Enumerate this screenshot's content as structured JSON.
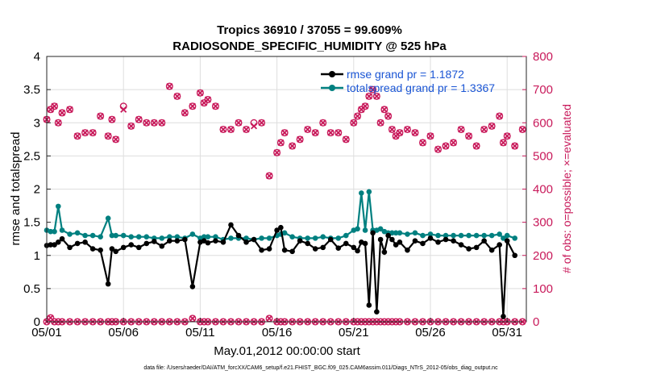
{
  "chart_data": {
    "type": "line",
    "title": "Tropics 36910 / 37055 = 99.609%",
    "subtitle": "RADIOSONDE_SPECIFIC_HUMIDITY @ 525 hPa",
    "xlabel": "May.01,2012 00:00:00 start",
    "ylabel": "rmse and totalspread",
    "ylabel_right": "# of obs: o=possible; ×=evaluated",
    "xlim": [
      0,
      31.25
    ],
    "ylim": [
      0,
      4
    ],
    "ylim_right": [
      0,
      800
    ],
    "x_ticks": [
      0,
      5,
      10,
      15,
      20,
      25,
      30
    ],
    "x_tick_labels": [
      "05/01",
      "05/06",
      "05/11",
      "05/16",
      "05/21",
      "05/26",
      "05/31"
    ],
    "y_ticks": [
      0,
      0.5,
      1,
      1.5,
      2,
      2.5,
      3,
      3.5,
      4
    ],
    "y_tick_labels": [
      "0",
      "0.5",
      "1",
      "1.5",
      "2",
      "2.5",
      "3",
      "3.5",
      "4"
    ],
    "y_ticks_right": [
      0,
      100,
      200,
      300,
      400,
      500,
      600,
      700,
      800
    ],
    "y_tick_labels_right": [
      "0",
      "100",
      "200",
      "300",
      "400",
      "500",
      "600",
      "700",
      "800"
    ],
    "legend": [
      {
        "name": "rmse grand pr = 1.1872",
        "color": "#000000",
        "marker": "circle"
      },
      {
        "name": "totalspread grand pr = 1.3367",
        "color": "#008080",
        "marker": "circle"
      }
    ],
    "legend_position": "top-right",
    "footer": "data file: /Users/raeder/DAI/ATM_forcXX/CAM6_setup/f.e21.FHIST_BGC.f09_025.CAM6assim.011/Diags_NTrS_2012-05/obs_diag_output.nc",
    "colors": {
      "rmse": "#000000",
      "spread": "#008080",
      "obs": "#c8195a",
      "legend_text": "#1a55d4"
    },
    "x": [
      0,
      0.25,
      0.5,
      0.75,
      1,
      1.5,
      2,
      2.5,
      3,
      3.5,
      4,
      4.25,
      4.5,
      5,
      5.5,
      6,
      6.5,
      7,
      7.5,
      8,
      8.5,
      9,
      9.5,
      10,
      10.25,
      10.5,
      11,
      11.5,
      12,
      12.5,
      13,
      13.5,
      14,
      14.5,
      15,
      15.25,
      15.5,
      16,
      16.5,
      17,
      17.5,
      18,
      18.5,
      19,
      19.5,
      20,
      20.25,
      20.5,
      20.75,
      21,
      21.25,
      21.5,
      21.75,
      22,
      22.25,
      22.5,
      22.75,
      23,
      23.5,
      24,
      24.5,
      25,
      25.5,
      26,
      26.5,
      27,
      27.5,
      28,
      28.5,
      29,
      29.5,
      29.75,
      30,
      30.5,
      31
    ],
    "series": [
      {
        "name": "rmse",
        "values": [
          1.15,
          1.16,
          1.16,
          1.2,
          1.25,
          1.12,
          1.18,
          1.2,
          1.1,
          1.08,
          0.57,
          1.1,
          1.06,
          1.12,
          1.16,
          1.12,
          1.18,
          1.21,
          1.14,
          1.22,
          1.22,
          1.24,
          0.53,
          1.2,
          1.22,
          1.19,
          1.22,
          1.2,
          1.46,
          1.3,
          1.2,
          1.24,
          1.08,
          1.1,
          1.38,
          1.42,
          1.08,
          1.06,
          1.22,
          1.18,
          1.1,
          1.12,
          1.24,
          1.11,
          1.18,
          1.12,
          1.07,
          1.2,
          1.18,
          0.25,
          1.34,
          0.15,
          1.24,
          1.05,
          1.3,
          1.24,
          1.16,
          1.2,
          1.08,
          1.22,
          1.18,
          1.26,
          1.2,
          1.24,
          1.22,
          1.16,
          1.1,
          1.12,
          1.22,
          1.08,
          1.16,
          0.08,
          1.22,
          1.0,
          null
        ]
      },
      {
        "name": "totalspread",
        "values": [
          1.38,
          1.36,
          1.36,
          1.74,
          1.38,
          1.32,
          1.34,
          1.3,
          1.3,
          1.28,
          1.56,
          1.3,
          1.3,
          1.3,
          1.28,
          1.28,
          1.28,
          1.26,
          1.26,
          1.28,
          1.28,
          1.26,
          1.32,
          1.26,
          1.28,
          1.28,
          1.28,
          1.24,
          1.26,
          1.26,
          1.26,
          1.24,
          1.26,
          1.26,
          1.3,
          1.32,
          1.34,
          1.28,
          1.26,
          1.26,
          1.26,
          1.28,
          1.26,
          1.26,
          1.3,
          1.38,
          1.4,
          1.94,
          1.38,
          1.96,
          1.38,
          1.38,
          1.4,
          1.36,
          1.34,
          1.34,
          1.34,
          1.34,
          1.32,
          1.34,
          1.3,
          1.32,
          1.3,
          1.3,
          1.3,
          1.3,
          1.3,
          1.3,
          1.3,
          1.3,
          1.32,
          1.26,
          1.3,
          1.26,
          null
        ]
      },
      {
        "name": "obs possible",
        "axis": "right",
        "values": [
          610,
          640,
          650,
          600,
          630,
          640,
          560,
          570,
          570,
          620,
          560,
          610,
          550,
          650,
          590,
          610,
          600,
          600,
          600,
          710,
          680,
          630,
          650,
          690,
          660,
          670,
          650,
          580,
          580,
          600,
          580,
          600,
          600,
          440,
          510,
          540,
          570,
          530,
          550,
          580,
          570,
          600,
          570,
          570,
          550,
          600,
          620,
          640,
          650,
          680,
          700,
          680,
          600,
          640,
          620,
          580,
          560,
          570,
          580,
          570,
          540,
          560,
          520,
          530,
          540,
          580,
          560,
          530,
          580,
          590,
          620,
          540,
          560,
          530,
          580
        ]
      },
      {
        "name": "obs evaluated",
        "axis": "right",
        "values": [
          610,
          640,
          650,
          600,
          630,
          640,
          560,
          570,
          570,
          620,
          560,
          610,
          550,
          640,
          590,
          610,
          600,
          600,
          600,
          710,
          680,
          630,
          650,
          690,
          660,
          670,
          650,
          580,
          580,
          600,
          580,
          590,
          600,
          440,
          510,
          540,
          570,
          530,
          550,
          580,
          570,
          600,
          570,
          570,
          550,
          600,
          620,
          640,
          650,
          680,
          700,
          680,
          600,
          640,
          620,
          580,
          560,
          570,
          580,
          570,
          540,
          560,
          520,
          530,
          540,
          580,
          560,
          530,
          580,
          590,
          620,
          540,
          560,
          530,
          580
        ]
      },
      {
        "name": "obs near zero",
        "axis": "right",
        "values": [
          0,
          12,
          0,
          0,
          0,
          0,
          0,
          0,
          0,
          0,
          0,
          0,
          0,
          0,
          0,
          0,
          0,
          0,
          0,
          0,
          0,
          0,
          10,
          0,
          0,
          0,
          0,
          0,
          0,
          0,
          0,
          0,
          0,
          10,
          0,
          0,
          0,
          0,
          0,
          0,
          0,
          0,
          0,
          0,
          0,
          0,
          0,
          0,
          0,
          0,
          0,
          0,
          0,
          0,
          0,
          0,
          0,
          0,
          0,
          0,
          0,
          0,
          0,
          0,
          0,
          0,
          0,
          0,
          0,
          0,
          0,
          0,
          0,
          0,
          0
        ]
      }
    ]
  }
}
